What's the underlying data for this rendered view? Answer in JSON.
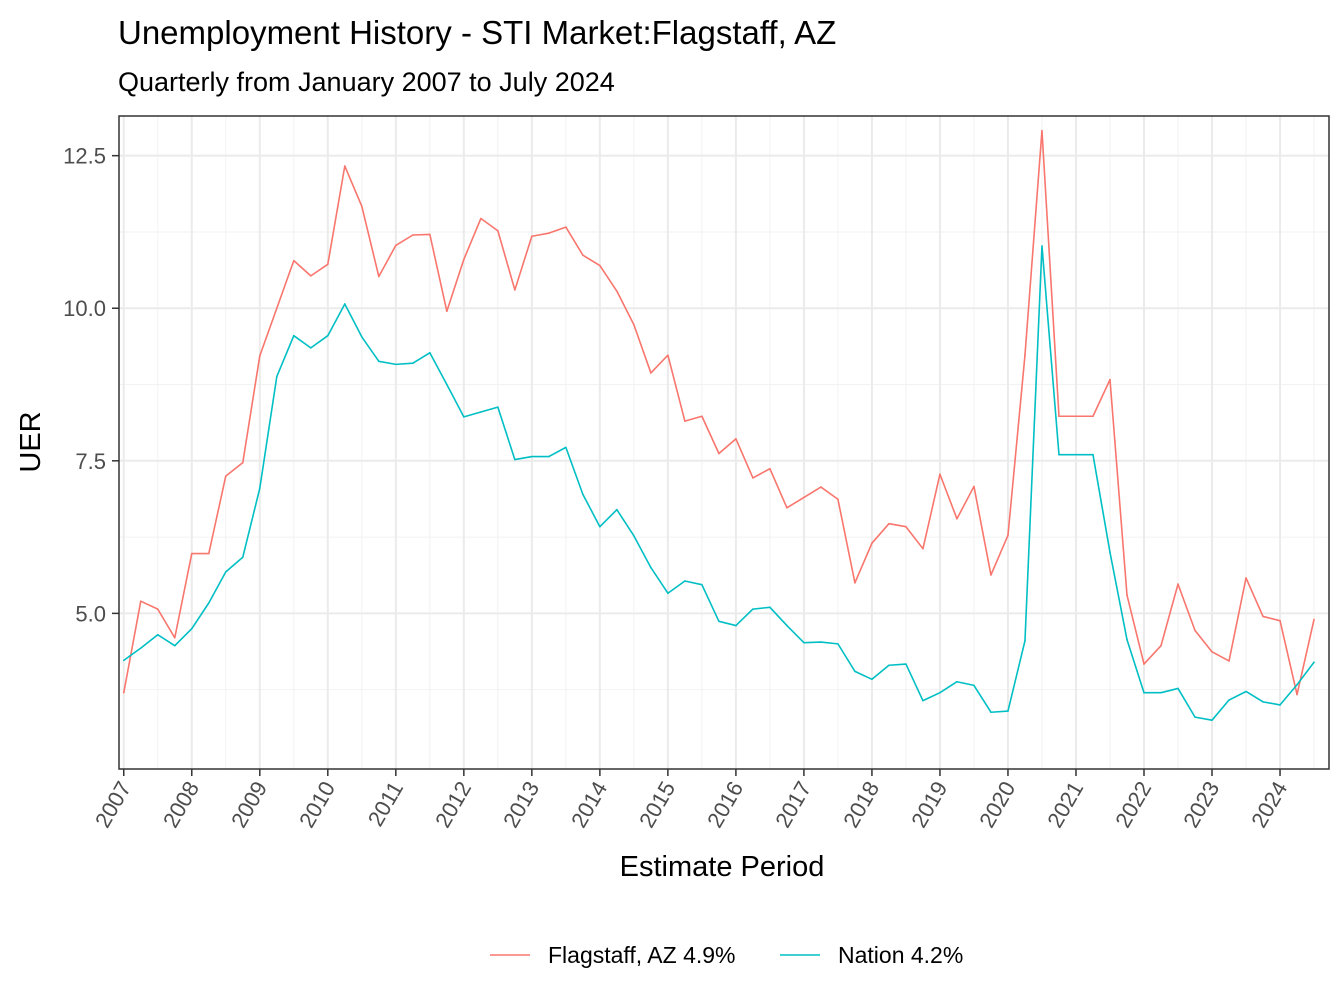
{
  "chart_data": {
    "type": "line",
    "title": "Unemployment History - STI Market:Flagstaff, AZ",
    "subtitle": "Quarterly from January 2007 to July 2024",
    "xlabel": "Estimate Period",
    "ylabel": "UER",
    "ylim": [
      2.45,
      13.15
    ],
    "xlim": [
      2006.93,
      2024.72
    ],
    "y_ticks": [
      5.0,
      7.5,
      10.0,
      12.5
    ],
    "y_tick_labels": [
      "5.0",
      "7.5",
      "10.0",
      "12.5"
    ],
    "x_ticks": [
      2007,
      2008,
      2009,
      2010,
      2011,
      2012,
      2013,
      2014,
      2015,
      2016,
      2017,
      2018,
      2019,
      2020,
      2021,
      2022,
      2023,
      2024
    ],
    "x_tick_labels": [
      "2007",
      "2008",
      "2009",
      "2010",
      "2011",
      "2012",
      "2013",
      "2014",
      "2015",
      "2016",
      "2017",
      "2018",
      "2019",
      "2020",
      "2021",
      "2022",
      "2023",
      "2024"
    ],
    "grid": true,
    "legend_position": "bottom",
    "x": [
      2007.0,
      2007.25,
      2007.5,
      2007.75,
      2008.0,
      2008.25,
      2008.5,
      2008.75,
      2009.0,
      2009.25,
      2009.5,
      2009.75,
      2010.0,
      2010.25,
      2010.5,
      2010.75,
      2011.0,
      2011.25,
      2011.5,
      2011.75,
      2012.0,
      2012.25,
      2012.5,
      2012.75,
      2013.0,
      2013.25,
      2013.5,
      2013.75,
      2014.0,
      2014.25,
      2014.5,
      2014.75,
      2015.0,
      2015.25,
      2015.5,
      2015.75,
      2016.0,
      2016.25,
      2016.5,
      2016.75,
      2017.0,
      2017.25,
      2017.5,
      2017.75,
      2018.0,
      2018.25,
      2018.5,
      2018.75,
      2019.0,
      2019.25,
      2019.5,
      2019.75,
      2020.0,
      2020.25,
      2020.5,
      2020.75,
      2021.0,
      2021.25,
      2021.5,
      2021.75,
      2022.0,
      2022.25,
      2022.5,
      2022.75,
      2023.0,
      2023.25,
      2023.5,
      2023.75,
      2024.0,
      2024.25,
      2024.5
    ],
    "series": [
      {
        "name": "Flagstaff, AZ 4.9%",
        "color": "#F8766D",
        "values": [
          3.7,
          5.2,
          5.07,
          4.6,
          5.98,
          5.98,
          7.25,
          7.47,
          9.22,
          10.0,
          10.78,
          10.53,
          10.72,
          12.33,
          11.67,
          10.52,
          11.03,
          11.2,
          11.21,
          9.95,
          10.8,
          11.47,
          11.27,
          10.3,
          11.18,
          11.23,
          11.33,
          10.87,
          10.7,
          10.28,
          9.73,
          8.94,
          9.23,
          8.15,
          8.23,
          7.62,
          7.86,
          7.22,
          7.37,
          6.73,
          6.9,
          7.07,
          6.87,
          5.5,
          6.15,
          6.47,
          6.42,
          6.06,
          7.28,
          6.55,
          7.08,
          5.63,
          6.28,
          9.23,
          12.91,
          8.23,
          8.23,
          8.23,
          8.83,
          5.3,
          4.17,
          4.47,
          5.48,
          4.72,
          4.37,
          4.22,
          5.58,
          4.95,
          4.88,
          3.67,
          4.9
        ]
      },
      {
        "name": "Nation 4.2%",
        "color": "#00BFC4",
        "values": [
          4.23,
          4.43,
          4.65,
          4.47,
          4.75,
          5.17,
          5.68,
          5.92,
          7.05,
          8.88,
          9.55,
          9.35,
          9.55,
          10.07,
          9.53,
          9.13,
          9.08,
          9.1,
          9.27,
          8.75,
          8.22,
          8.3,
          8.38,
          7.52,
          7.57,
          7.57,
          7.72,
          6.95,
          6.42,
          6.7,
          6.27,
          5.75,
          5.33,
          5.53,
          5.47,
          4.87,
          4.8,
          5.07,
          5.1,
          4.8,
          4.52,
          4.53,
          4.5,
          4.05,
          3.92,
          4.15,
          4.17,
          3.57,
          3.7,
          3.88,
          3.82,
          3.38,
          3.4,
          4.55,
          11.02,
          7.6,
          7.6,
          7.6,
          6.0,
          4.57,
          3.7,
          3.7,
          3.77,
          3.3,
          3.25,
          3.58,
          3.72,
          3.55,
          3.5,
          3.83,
          4.2
        ]
      }
    ]
  }
}
